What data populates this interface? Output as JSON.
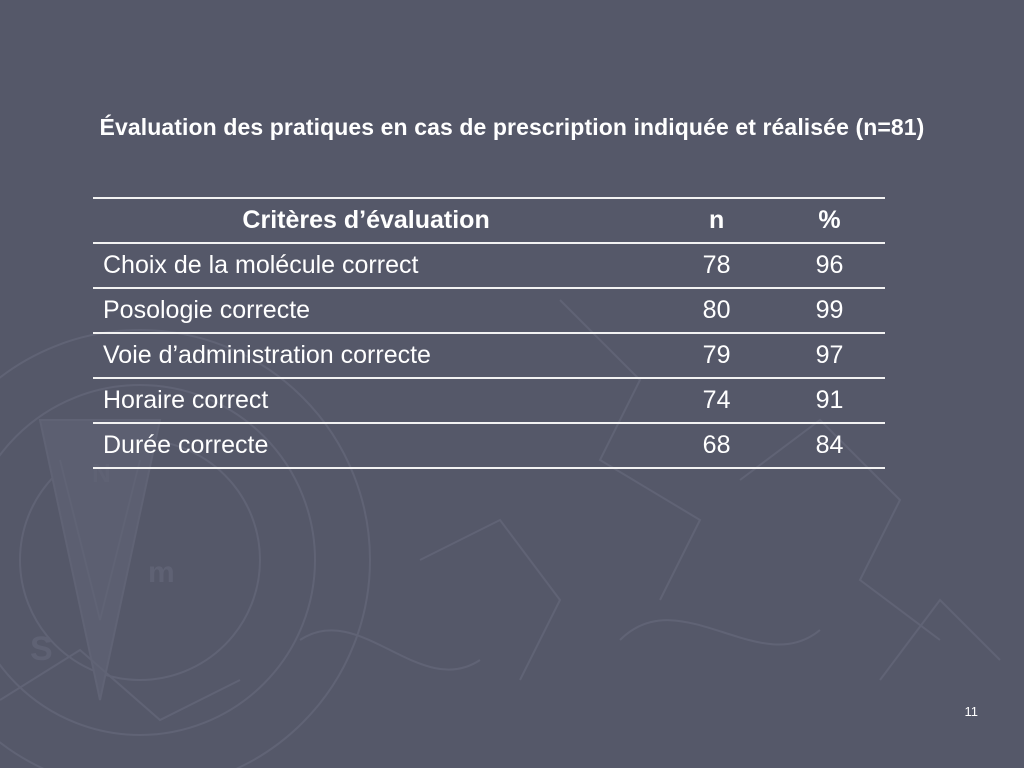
{
  "slide": {
    "title": "Évaluation des pratiques en cas de prescription indiquée et réalisée (n=81)",
    "page_number": "11"
  },
  "table": {
    "headers": {
      "criteria": "Critères d’évaluation",
      "n": "n",
      "percent": "%"
    },
    "rows": [
      {
        "criteria": "Choix de la molécule correct",
        "n": "78",
        "percent": "96"
      },
      {
        "criteria": "Posologie correcte",
        "n": "80",
        "percent": "99"
      },
      {
        "criteria": "Voie d’administration correcte",
        "n": "79",
        "percent": "97"
      },
      {
        "criteria": "Horaire correct",
        "n": "74",
        "percent": "91"
      },
      {
        "criteria": "Durée correcte",
        "n": "68",
        "percent": "84"
      }
    ]
  },
  "colors": {
    "background": "#555869",
    "text": "#ffffff",
    "rule": "#f2f2f2"
  },
  "decoration": {
    "icon": "compass-rose-watermark"
  }
}
